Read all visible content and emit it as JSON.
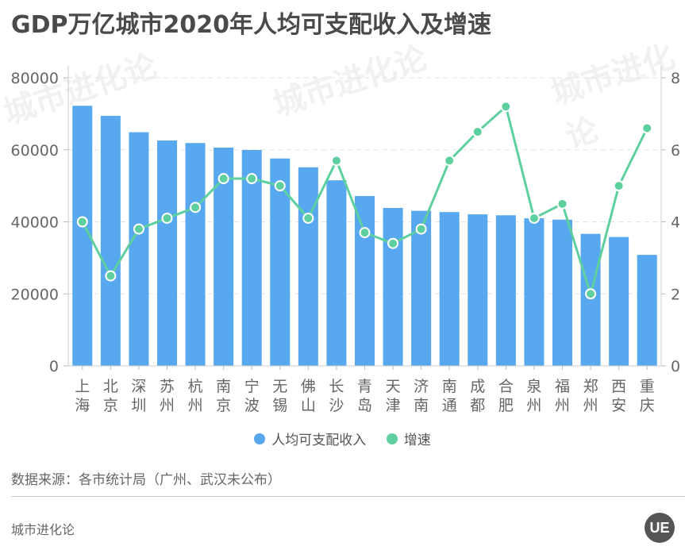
{
  "title": "GDP万亿城市2020年人均可支配收入及增速",
  "legend": {
    "income_label": "人均可支配收入",
    "growth_label": "增速",
    "income_color": "#57a8ef",
    "growth_color": "#5ecf9e"
  },
  "source": "数据来源：各市统计局（广州、武汉未公布）",
  "brand": "城市进化论",
  "logo_text": "UE",
  "watermark": "城市进化论",
  "chart_data": {
    "type": "bar",
    "title": "GDP万亿城市2020年人均可支配收入及增速",
    "categories": [
      "上海",
      "北京",
      "深圳",
      "苏州",
      "杭州",
      "南京",
      "宁波",
      "无锡",
      "佛山",
      "长沙",
      "青岛",
      "天津",
      "济南",
      "南通",
      "成都",
      "合肥",
      "泉州",
      "福州",
      "郑州",
      "西安",
      "重庆"
    ],
    "category_lines": [
      [
        "上",
        "海"
      ],
      [
        "北",
        "京"
      ],
      [
        "深",
        "圳"
      ],
      [
        "苏",
        "州"
      ],
      [
        "杭",
        "州"
      ],
      [
        "南",
        "京"
      ],
      [
        "宁",
        "波"
      ],
      [
        "无",
        "锡"
      ],
      [
        "佛",
        "山"
      ],
      [
        "长",
        "沙"
      ],
      [
        "青",
        "岛"
      ],
      [
        "天",
        "津"
      ],
      [
        "济",
        "南"
      ],
      [
        "南",
        "通"
      ],
      [
        "成",
        "都"
      ],
      [
        "合",
        "肥"
      ],
      [
        "泉",
        "州"
      ],
      [
        "福",
        "州"
      ],
      [
        "郑",
        "州"
      ],
      [
        "西",
        "安"
      ],
      [
        "重",
        "庆"
      ]
    ],
    "series": [
      {
        "name": "人均可支配收入",
        "type": "bar",
        "axis": "left",
        "color": "#57a8ef",
        "values": [
          72232,
          69434,
          64878,
          62582,
          61879,
          60606,
          59952,
          57589,
          55133,
          51530,
          47156,
          43854,
          43056,
          42715,
          42075,
          41817,
          40984,
          40599,
          36661,
          35783,
          30824
        ]
      },
      {
        "name": "增速",
        "type": "line",
        "axis": "right",
        "color": "#5ecf9e",
        "values": [
          4.0,
          2.5,
          3.8,
          4.1,
          4.4,
          5.2,
          5.2,
          5.0,
          4.1,
          5.7,
          3.7,
          3.4,
          3.8,
          5.7,
          6.5,
          7.2,
          4.1,
          4.5,
          2.0,
          5.0,
          6.6
        ]
      }
    ],
    "y_left": {
      "ticks": [
        "0",
        "20000",
        "40000",
        "60000",
        "80000"
      ],
      "range": [
        0,
        80000
      ]
    },
    "y_right": {
      "ticks": [
        "0",
        "2",
        "4",
        "6",
        "8"
      ],
      "range": [
        0,
        8
      ]
    },
    "xlabel": "",
    "ylabel": "",
    "grid": true,
    "legend_position": "bottom"
  }
}
